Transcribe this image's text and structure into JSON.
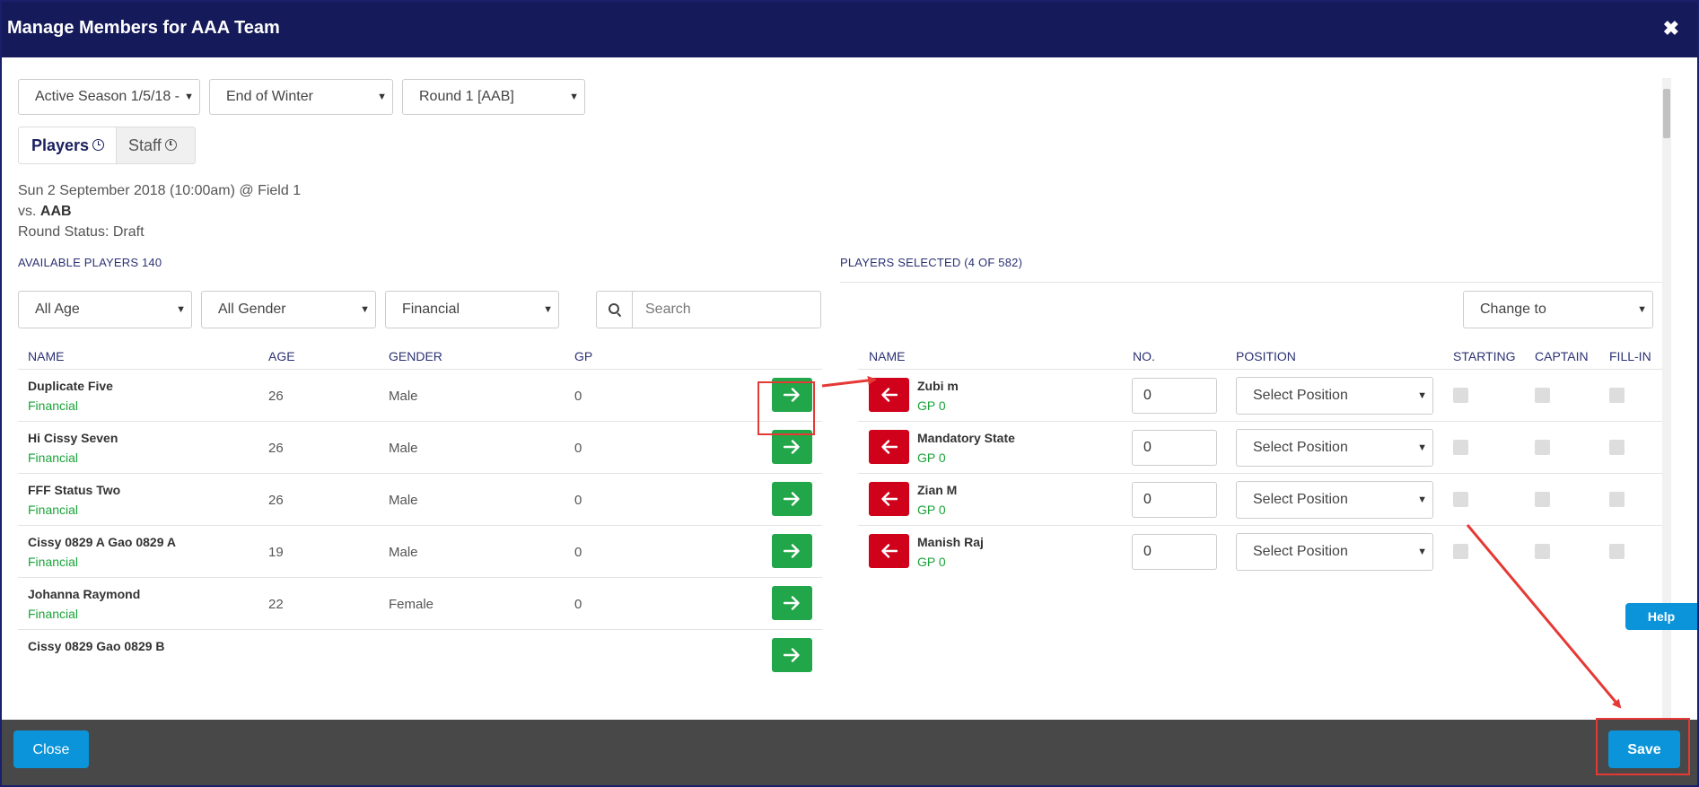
{
  "window": {
    "title": "Manage Members for AAA Team",
    "close_glyph": "✖"
  },
  "filters": {
    "season": "Active Season 1/5/18 -",
    "period": "End of Winter",
    "round": "Round 1 [AAB]"
  },
  "tabs": [
    {
      "label": "Players"
    },
    {
      "label": "Staff"
    }
  ],
  "match": {
    "datetime": "Sun 2 September 2018 (10:00am) @ Field 1",
    "vs_prefix": "vs. ",
    "opponent": "AAB",
    "status": "Round Status: Draft"
  },
  "available": {
    "heading": "AVAILABLE PLAYERS 140",
    "filters": {
      "age": "All Age",
      "gender": "All Gender",
      "financial": "Financial"
    },
    "search_placeholder": "Search",
    "columns": {
      "name": "NAME",
      "age": "AGE",
      "gender": "GENDER",
      "gp": "GP"
    },
    "players": [
      {
        "name": "Duplicate Five",
        "status": "Financial",
        "age": "26",
        "gender": "Male",
        "gp": "0"
      },
      {
        "name": "Hi Cissy Seven",
        "status": "Financial",
        "age": "26",
        "gender": "Male",
        "gp": "0"
      },
      {
        "name": "FFF Status Two",
        "status": "Financial",
        "age": "26",
        "gender": "Male",
        "gp": "0"
      },
      {
        "name": "Cissy 0829 A Gao 0829 A",
        "status": "Financial",
        "age": "19",
        "gender": "Male",
        "gp": "0"
      },
      {
        "name": "Johanna Raymond",
        "status": "Financial",
        "age": "22",
        "gender": "Female",
        "gp": "0"
      },
      {
        "name": "Cissy 0829 Gao 0829 B",
        "status": "",
        "age": "",
        "gender": "",
        "gp": ""
      }
    ]
  },
  "selected": {
    "heading": "PLAYERS SELECTED (4 OF 582)",
    "change_to": "Change to",
    "columns": {
      "name": "NAME",
      "no": "NO.",
      "position": "POSITION",
      "starting": "STARTING",
      "captain": "CAPTAIN",
      "fillin": "FILL-IN"
    },
    "players": [
      {
        "name": "Zubi m",
        "gp": "GP 0",
        "number": "0",
        "position": "Select Position"
      },
      {
        "name": "Mandatory State",
        "gp": "GP 0",
        "number": "0",
        "position": "Select Position"
      },
      {
        "name": "Zian M",
        "gp": "GP 0",
        "number": "0",
        "position": "Select Position"
      },
      {
        "name": "Manish Raj",
        "gp": "GP 0",
        "number": "0",
        "position": "Select Position"
      }
    ]
  },
  "help": {
    "label": "Help"
  },
  "footer": {
    "close_label": "Close",
    "save_label": "Save"
  },
  "colors": {
    "header": "#151a5a",
    "add_button": "#21a649",
    "remove_button": "#d0021b",
    "primary_button": "#0b94d9",
    "status_green": "#1aa33a",
    "annotation_red": "#e53935"
  }
}
